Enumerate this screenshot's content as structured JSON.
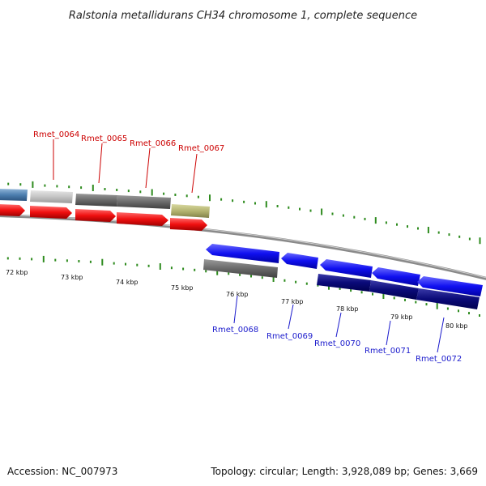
{
  "title": "Ralstonia metallidurans CH34 chromosome 1, complete sequence",
  "footer": {
    "accession": "Accession: NC_007973",
    "summary": "Topology: circular; Length: 3,928,089 bp; Genes: 3,669"
  },
  "colors": {
    "forward_label": "#cc0000",
    "reverse_label": "#1a1acc",
    "tick": "#2e8b1e",
    "backbone": "#8a8a8a"
  },
  "axis_labels": [
    "72 kbp",
    "73 kbp",
    "74 kbp",
    "75 kbp",
    "76 kbp",
    "77 kbp",
    "78 kbp",
    "79 kbp",
    "80 kbp"
  ],
  "forward_genes": [
    "Rmet_0064",
    "Rmet_0065",
    "Rmet_0066",
    "Rmet_0067"
  ],
  "reverse_genes": [
    "Rmet_0068",
    "Rmet_0069",
    "Rmet_0070",
    "Rmet_0071",
    "Rmet_0072"
  ]
}
